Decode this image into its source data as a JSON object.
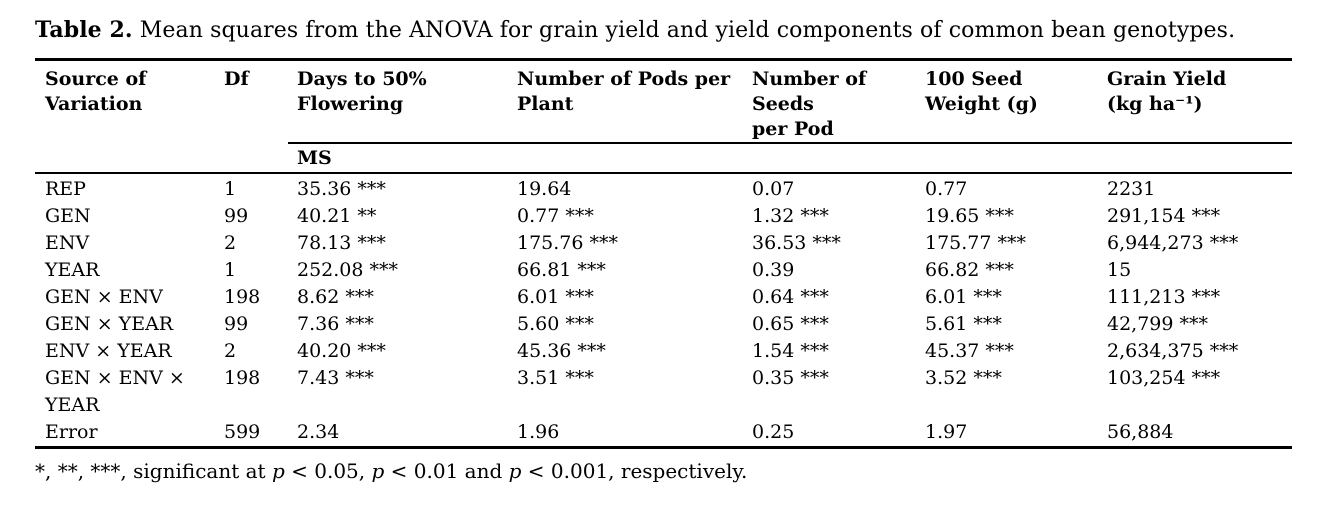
{
  "caption": {
    "label": "Table 2.",
    "text": " Mean squares from the ANOVA for grain yield and yield components of common bean genotypes."
  },
  "table": {
    "columns": [
      {
        "label": "Source of\nVariation"
      },
      {
        "label": "Df"
      },
      {
        "label": "Days to 50%\nFlowering"
      },
      {
        "label": "Number of Pods per\nPlant"
      },
      {
        "label": "Number of\nSeeds\nper Pod"
      },
      {
        "label": "100 Seed\nWeight (g)"
      },
      {
        "label": "Grain Yield\n(kg ha⁻¹)"
      }
    ],
    "subheader": "MS",
    "rows": [
      {
        "source": "REP",
        "df": "1",
        "values": [
          "35.36 ***",
          "19.64",
          "0.07",
          "0.77",
          "2231"
        ]
      },
      {
        "source": "GEN",
        "df": "99",
        "values": [
          "40.21 **",
          "0.77 ***",
          "1.32 ***",
          "19.65 ***",
          "291,154 ***"
        ]
      },
      {
        "source": "ENV",
        "df": "2",
        "values": [
          "78.13 ***",
          "175.76 ***",
          "36.53 ***",
          "175.77 ***",
          "6,944,273 ***"
        ]
      },
      {
        "source": "YEAR",
        "df": "1",
        "values": [
          "252.08 ***",
          "66.81 ***",
          "0.39",
          "66.82 ***",
          "15"
        ]
      },
      {
        "source": "GEN × ENV",
        "df": "198",
        "values": [
          "8.62 ***",
          "6.01 ***",
          "0.64 ***",
          "6.01 ***",
          "111,213 ***"
        ]
      },
      {
        "source": "GEN × YEAR",
        "df": "99",
        "values": [
          "7.36 ***",
          "5.60 ***",
          "0.65 ***",
          "5.61 ***",
          "42,799 ***"
        ]
      },
      {
        "source": "ENV × YEAR",
        "df": "2",
        "values": [
          "40.20 ***",
          "45.36 ***",
          "1.54 ***",
          "45.37 ***",
          "2,634,375 ***"
        ]
      },
      {
        "source": "GEN × ENV ×\nYEAR",
        "df": "198",
        "values": [
          "7.43 ***",
          "3.51 ***",
          "0.35 ***",
          "3.52 ***",
          "103,254 ***"
        ]
      },
      {
        "source": "Error",
        "df": "599",
        "values": [
          "2.34",
          "1.96",
          "0.25",
          "1.97",
          "56,884"
        ]
      }
    ]
  },
  "footnote": {
    "segments": [
      {
        "text": "*, **, ***, significant at ",
        "italic": false
      },
      {
        "text": "p",
        "italic": true
      },
      {
        "text": " < 0.05, ",
        "italic": false
      },
      {
        "text": "p",
        "italic": true
      },
      {
        "text": " < 0.01 and ",
        "italic": false
      },
      {
        "text": "p",
        "italic": true
      },
      {
        "text": " < 0.001, respectively.",
        "italic": false
      }
    ]
  },
  "colors": {
    "text": "#000000",
    "background": "#ffffff",
    "rule": "#000000"
  }
}
